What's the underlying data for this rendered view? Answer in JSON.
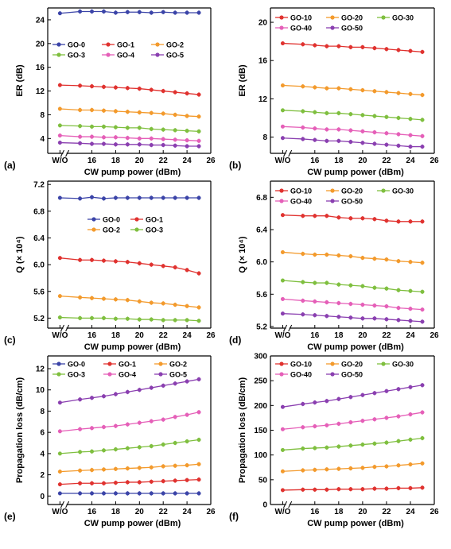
{
  "panel_labels": [
    "(a)",
    "(b)",
    "(c)",
    "(d)",
    "(e)",
    "(f)"
  ],
  "colors": {
    "GO-0": "#3b44a8",
    "GO-1": "#e0322f",
    "GO-2": "#f39a2c",
    "GO-3": "#7fbf3f",
    "GO-4": "#e55fb8",
    "GO-5": "#8a3fb0",
    "GO-10": "#e0322f",
    "GO-20": "#f39a2c",
    "GO-30": "#7fbf3f",
    "GO-40": "#e55fb8",
    "GO-50": "#8a3fb0"
  },
  "chart_data": [
    {
      "id": "a",
      "type": "line",
      "xlabel": "CW pump power (dBm)",
      "ylabel": "ER (dB)",
      "xticks": [
        "W/O",
        "16",
        "18",
        "20",
        "22",
        "24",
        "26"
      ],
      "yticks": [
        "4",
        "8",
        "12",
        "16",
        "20",
        "24"
      ],
      "ylim": [
        1.5,
        26
      ],
      "legend": {
        "placement": "middle",
        "columns": 3
      },
      "x": [
        "W/O",
        15,
        16,
        17,
        18,
        19,
        20,
        21,
        22,
        23,
        24,
        25
      ],
      "series": [
        {
          "name": "GO-0",
          "values": [
            25.1,
            25.4,
            25.4,
            25.4,
            25.2,
            25.3,
            25.3,
            25.2,
            25.3,
            25.2,
            25.2,
            25.2
          ]
        },
        {
          "name": "GO-1",
          "values": [
            13.0,
            12.9,
            12.8,
            12.7,
            12.6,
            12.5,
            12.4,
            12.2,
            12.0,
            11.8,
            11.6,
            11.4
          ]
        },
        {
          "name": "GO-2",
          "values": [
            9.0,
            8.8,
            8.8,
            8.7,
            8.6,
            8.5,
            8.4,
            8.3,
            8.2,
            8.0,
            7.8,
            7.7
          ]
        },
        {
          "name": "GO-3",
          "values": [
            6.2,
            6.1,
            6.0,
            6.0,
            5.9,
            5.8,
            5.8,
            5.6,
            5.5,
            5.4,
            5.3,
            5.2
          ]
        },
        {
          "name": "GO-4",
          "values": [
            4.5,
            4.3,
            4.3,
            4.2,
            4.2,
            4.1,
            4.0,
            4.0,
            3.9,
            3.8,
            3.7,
            3.6
          ]
        },
        {
          "name": "GO-5",
          "values": [
            3.3,
            3.2,
            3.1,
            3.1,
            3.0,
            3.0,
            3.0,
            2.9,
            2.9,
            2.8,
            2.7,
            2.7
          ]
        }
      ]
    },
    {
      "id": "b",
      "type": "line",
      "xlabel": "CW pump power (dBm)",
      "ylabel": "ER (dB)",
      "xticks": [
        "W/O",
        "16",
        "18",
        "20",
        "22",
        "24",
        "26"
      ],
      "yticks": [
        "8",
        "12",
        "16",
        "20"
      ],
      "ylim": [
        6.3,
        21.5
      ],
      "legend": {
        "placement": "top",
        "columns": 3
      },
      "x": [
        "W/O",
        15,
        16,
        17,
        18,
        19,
        20,
        21,
        22,
        23,
        24,
        25
      ],
      "series": [
        {
          "name": "GO-10",
          "values": [
            17.8,
            17.7,
            17.6,
            17.5,
            17.5,
            17.4,
            17.4,
            17.3,
            17.2,
            17.1,
            17.0,
            16.9
          ]
        },
        {
          "name": "GO-20",
          "values": [
            13.4,
            13.3,
            13.2,
            13.1,
            13.1,
            13.0,
            12.9,
            12.8,
            12.7,
            12.6,
            12.5,
            12.4
          ]
        },
        {
          "name": "GO-30",
          "values": [
            10.8,
            10.7,
            10.6,
            10.5,
            10.5,
            10.4,
            10.3,
            10.2,
            10.1,
            10.0,
            9.9,
            9.8
          ]
        },
        {
          "name": "GO-40",
          "values": [
            9.1,
            9.0,
            8.9,
            8.8,
            8.8,
            8.7,
            8.6,
            8.5,
            8.4,
            8.3,
            8.2,
            8.1
          ]
        },
        {
          "name": "GO-50",
          "values": [
            7.9,
            7.8,
            7.7,
            7.6,
            7.6,
            7.5,
            7.4,
            7.3,
            7.2,
            7.1,
            7.0,
            7.0
          ]
        }
      ]
    },
    {
      "id": "c",
      "type": "line",
      "xlabel": "CW pump power (dBm)",
      "ylabel": "Q (× 10⁴)",
      "xticks": [
        "W/O",
        "16",
        "18",
        "20",
        "22",
        "24",
        "26"
      ],
      "yticks": [
        "5.2",
        "5.6",
        "6.0",
        "6.4",
        "6.8",
        "7.2"
      ],
      "ylim": [
        5.05,
        7.25
      ],
      "legend": {
        "placement": "middle",
        "columns": 2
      },
      "x": [
        "W/O",
        15,
        16,
        17,
        18,
        19,
        20,
        21,
        22,
        23,
        24,
        25
      ],
      "series": [
        {
          "name": "GO-0",
          "values": [
            7.0,
            6.99,
            7.01,
            6.99,
            7.0,
            7.0,
            7.0,
            7.0,
            7.0,
            7.0,
            7.0,
            7.0
          ]
        },
        {
          "name": "GO-1",
          "values": [
            6.1,
            6.07,
            6.07,
            6.06,
            6.05,
            6.04,
            6.02,
            6.0,
            5.98,
            5.96,
            5.92,
            5.87
          ]
        },
        {
          "name": "GO-2",
          "values": [
            5.53,
            5.51,
            5.5,
            5.49,
            5.48,
            5.47,
            5.45,
            5.43,
            5.42,
            5.4,
            5.38,
            5.36
          ]
        },
        {
          "name": "GO-3",
          "values": [
            5.21,
            5.2,
            5.2,
            5.2,
            5.19,
            5.19,
            5.18,
            5.18,
            5.17,
            5.17,
            5.17,
            5.16
          ]
        }
      ]
    },
    {
      "id": "d",
      "type": "line",
      "xlabel": "CW pump power (dBm)",
      "ylabel": "Q (× 10⁴)",
      "xticks": [
        "W/O",
        "16",
        "18",
        "20",
        "22",
        "24",
        "26"
      ],
      "yticks": [
        "5.2",
        "5.6",
        "6.0",
        "6.4",
        "6.8"
      ],
      "ylim": [
        5.18,
        7.0
      ],
      "legend": {
        "placement": "top",
        "columns": 3
      },
      "x": [
        "W/O",
        15,
        16,
        17,
        18,
        19,
        20,
        21,
        22,
        23,
        24,
        25
      ],
      "series": [
        {
          "name": "GO-10",
          "values": [
            6.58,
            6.57,
            6.57,
            6.57,
            6.55,
            6.54,
            6.54,
            6.53,
            6.51,
            6.5,
            6.5,
            6.5
          ]
        },
        {
          "name": "GO-20",
          "values": [
            6.12,
            6.1,
            6.09,
            6.09,
            6.08,
            6.07,
            6.05,
            6.04,
            6.03,
            6.01,
            6.0,
            5.99
          ]
        },
        {
          "name": "GO-30",
          "values": [
            5.77,
            5.75,
            5.74,
            5.74,
            5.72,
            5.71,
            5.7,
            5.68,
            5.67,
            5.65,
            5.64,
            5.63
          ]
        },
        {
          "name": "GO-40",
          "values": [
            5.54,
            5.52,
            5.51,
            5.5,
            5.49,
            5.48,
            5.47,
            5.46,
            5.45,
            5.43,
            5.42,
            5.41
          ]
        },
        {
          "name": "GO-50",
          "values": [
            5.36,
            5.35,
            5.34,
            5.33,
            5.32,
            5.31,
            5.3,
            5.3,
            5.29,
            5.28,
            5.27,
            5.26
          ]
        }
      ]
    },
    {
      "id": "e",
      "type": "line",
      "xlabel": "CW pump power (dBm)",
      "ylabel": "Propagation loss (dB/cm)",
      "xticks": [
        "W/O",
        "16",
        "18",
        "20",
        "22",
        "24",
        "26"
      ],
      "yticks": [
        "0",
        "2",
        "4",
        "6",
        "8",
        "10",
        "12"
      ],
      "ylim": [
        -0.8,
        13.2
      ],
      "legend": {
        "placement": "top",
        "columns": 3
      },
      "x": [
        "W/O",
        15,
        16,
        17,
        18,
        19,
        20,
        21,
        22,
        23,
        24,
        25
      ],
      "series": [
        {
          "name": "GO-0",
          "values": [
            0.25,
            0.25,
            0.25,
            0.25,
            0.25,
            0.25,
            0.25,
            0.25,
            0.25,
            0.25,
            0.25,
            0.25
          ]
        },
        {
          "name": "GO-1",
          "values": [
            1.1,
            1.2,
            1.2,
            1.2,
            1.25,
            1.3,
            1.3,
            1.35,
            1.4,
            1.45,
            1.5,
            1.55
          ]
        },
        {
          "name": "GO-2",
          "values": [
            2.3,
            2.4,
            2.45,
            2.5,
            2.55,
            2.6,
            2.65,
            2.7,
            2.8,
            2.85,
            2.9,
            3.0
          ]
        },
        {
          "name": "GO-3",
          "values": [
            4.0,
            4.15,
            4.2,
            4.3,
            4.4,
            4.5,
            4.6,
            4.7,
            4.85,
            5.0,
            5.15,
            5.3
          ]
        },
        {
          "name": "GO-4",
          "values": [
            6.1,
            6.3,
            6.4,
            6.5,
            6.6,
            6.75,
            6.9,
            7.05,
            7.2,
            7.45,
            7.65,
            7.9
          ]
        },
        {
          "name": "GO-5",
          "values": [
            8.8,
            9.1,
            9.25,
            9.4,
            9.6,
            9.8,
            10.0,
            10.2,
            10.4,
            10.6,
            10.8,
            11.0
          ]
        }
      ]
    },
    {
      "id": "f",
      "type": "line",
      "xlabel": "CW pump power (dBm)",
      "ylabel": "Propagation loss (dB/cm)",
      "xticks": [
        "W/O",
        "16",
        "18",
        "20",
        "22",
        "24",
        "26"
      ],
      "yticks": [
        "0",
        "50",
        "100",
        "150",
        "200",
        "250",
        "300"
      ],
      "ylim": [
        0,
        300
      ],
      "legend": {
        "placement": "top",
        "columns": 3
      },
      "x": [
        "W/O",
        15,
        16,
        17,
        18,
        19,
        20,
        21,
        22,
        23,
        24,
        25
      ],
      "series": [
        {
          "name": "GO-10",
          "values": [
            29,
            30,
            30,
            30,
            31,
            31,
            31,
            32,
            32,
            33,
            33,
            34
          ]
        },
        {
          "name": "GO-20",
          "values": [
            67,
            69,
            70,
            71,
            72,
            73,
            74,
            76,
            77,
            79,
            81,
            83
          ]
        },
        {
          "name": "GO-30",
          "values": [
            110,
            113,
            114,
            115,
            117,
            119,
            121,
            123,
            125,
            128,
            131,
            134
          ]
        },
        {
          "name": "GO-40",
          "values": [
            152,
            156,
            158,
            160,
            163,
            166,
            169,
            172,
            175,
            178,
            182,
            186
          ]
        },
        {
          "name": "GO-50",
          "values": [
            197,
            203,
            206,
            209,
            213,
            217,
            221,
            225,
            229,
            233,
            237,
            241
          ]
        }
      ]
    }
  ]
}
